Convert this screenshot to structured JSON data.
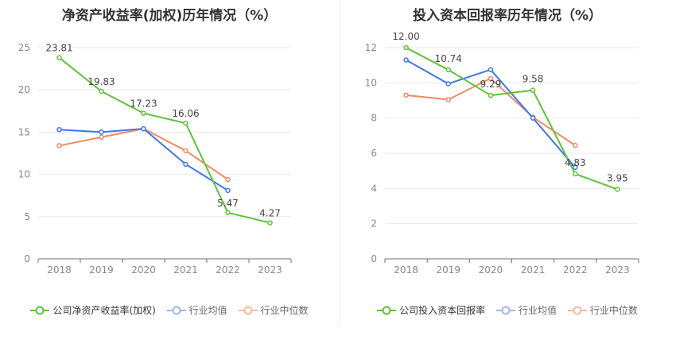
{
  "chart_data": [
    {
      "type": "line",
      "title": "净资产收益率(加权)历年情况（%）",
      "categories": [
        "2018",
        "2019",
        "2020",
        "2021",
        "2022",
        "2023"
      ],
      "ylim": [
        0,
        25
      ],
      "yticks": [
        0,
        5,
        10,
        15,
        20,
        25
      ],
      "ytick_labels": [
        "0",
        "5",
        "10",
        "15",
        "20",
        "25"
      ],
      "series": [
        {
          "name": "公司净资产收益率(加权)",
          "color": "#5ec236",
          "values": [
            23.81,
            19.83,
            17.23,
            16.06,
            5.47,
            4.27
          ],
          "labels": [
            "23.81",
            "19.83",
            "17.23",
            "16.06",
            "5.47",
            "4.27"
          ]
        },
        {
          "name": "行业均值",
          "color": "#3f76e8",
          "values": [
            15.3,
            15.0,
            15.4,
            11.2,
            8.1,
            null
          ]
        },
        {
          "name": "行业中位数",
          "color": "#f08a62",
          "values": [
            13.4,
            14.4,
            15.4,
            12.8,
            9.4,
            null
          ]
        }
      ]
    },
    {
      "type": "line",
      "title": "投入资本回报率历年情况（%）",
      "categories": [
        "2018",
        "2019",
        "2020",
        "2021",
        "2022",
        "2023"
      ],
      "ylim": [
        0,
        12
      ],
      "yticks": [
        0,
        2,
        4,
        6,
        8,
        10,
        12
      ],
      "ytick_labels": [
        "0",
        "2",
        "4",
        "6",
        "8",
        "10",
        "12"
      ],
      "series": [
        {
          "name": "公司投入资本回报率",
          "color": "#5ec236",
          "values": [
            12.0,
            10.74,
            9.29,
            9.58,
            4.83,
            3.95
          ],
          "labels": [
            "12.00",
            "10.74",
            "9.29",
            "9.58",
            "4.83",
            "3.95"
          ]
        },
        {
          "name": "行业均值",
          "color": "#3f76e8",
          "values": [
            11.3,
            9.95,
            10.75,
            8.0,
            5.2,
            null
          ]
        },
        {
          "name": "行业中位数",
          "color": "#f08a62",
          "values": [
            9.3,
            9.05,
            10.25,
            8.05,
            6.45,
            null
          ]
        }
      ]
    }
  ]
}
